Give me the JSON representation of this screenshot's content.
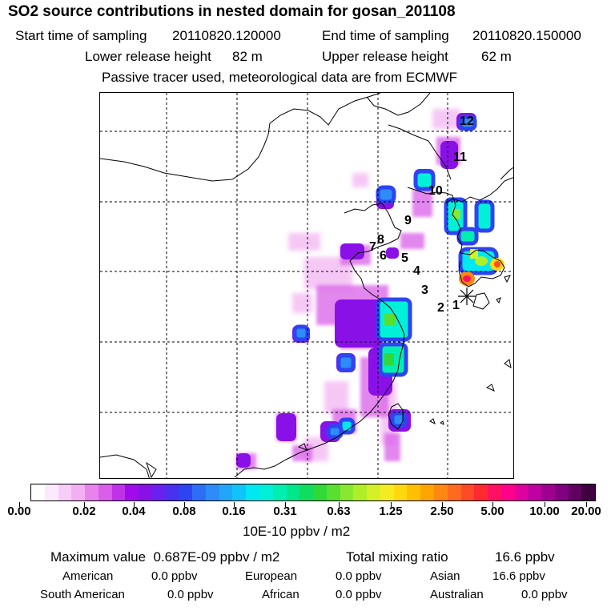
{
  "header": {
    "title": "SO2 source contributions in nested domain for gosan_201108",
    "start_label": "Start time of sampling",
    "start_value": "20110820.120000",
    "end_label": "End time of sampling",
    "end_value": "20110820.150000",
    "lower_label": "Lower release height",
    "lower_value": "82 m",
    "upper_label": "Upper release height",
    "upper_value": "62 m",
    "note": "Passive tracer used, meteorological data are from ECMWF"
  },
  "map": {
    "receptor_marker": "asterisk-icon",
    "trajectory_labels": [
      "1",
      "2",
      "3",
      "4",
      "5",
      "6",
      "7",
      "8",
      "9",
      "10",
      "11",
      "12"
    ]
  },
  "colorbar": {
    "labels": [
      "0.00",
      "0.02",
      "0.04",
      "0.08",
      "0.16",
      "0.31",
      "0.63",
      "1.25",
      "2.50",
      "5.00",
      "10.00",
      "20.00"
    ],
    "colors": [
      "#ffffff",
      "#fde9fd",
      "#f8ccf8",
      "#f2b0f2",
      "#e883ee",
      "#d95ee9",
      "#bf32ea",
      "#a10aea",
      "#8a10e8",
      "#6a20ee",
      "#4a30f0",
      "#2e44f2",
      "#2e6ef6",
      "#2e8cf8",
      "#22a6f8",
      "#10c4f8",
      "#00e8f2",
      "#00f0d8",
      "#00eeb0",
      "#00e68a",
      "#10dc60",
      "#30d838",
      "#58e030",
      "#88e830",
      "#b0ee28",
      "#d6f028",
      "#f4ec20",
      "#ffd810",
      "#ffc000",
      "#ffa400",
      "#ff8810",
      "#ff6a20",
      "#ff4a28",
      "#ff2a30",
      "#ff1060",
      "#ff008c",
      "#e000a0",
      "#c000a0",
      "#a00090",
      "#800080",
      "#600060",
      "#400040"
    ],
    "unit": "10E-10 ppbv / m2"
  },
  "summary": {
    "max_label": "Maximum value",
    "max_value": "0.687E-09 ppbv / m2",
    "total_label": "Total mixing ratio",
    "total_value": "16.6 ppbv",
    "regions": [
      {
        "name": "American",
        "value": "0.0 ppbv"
      },
      {
        "name": "European",
        "value": "0.0 ppbv"
      },
      {
        "name": "Asian",
        "value": "16.6 ppbv"
      },
      {
        "name": "South American",
        "value": "0.0 ppbv"
      },
      {
        "name": "African",
        "value": "0.0 ppbv"
      },
      {
        "name": "Australian",
        "value": "0.0 ppbv"
      }
    ]
  }
}
